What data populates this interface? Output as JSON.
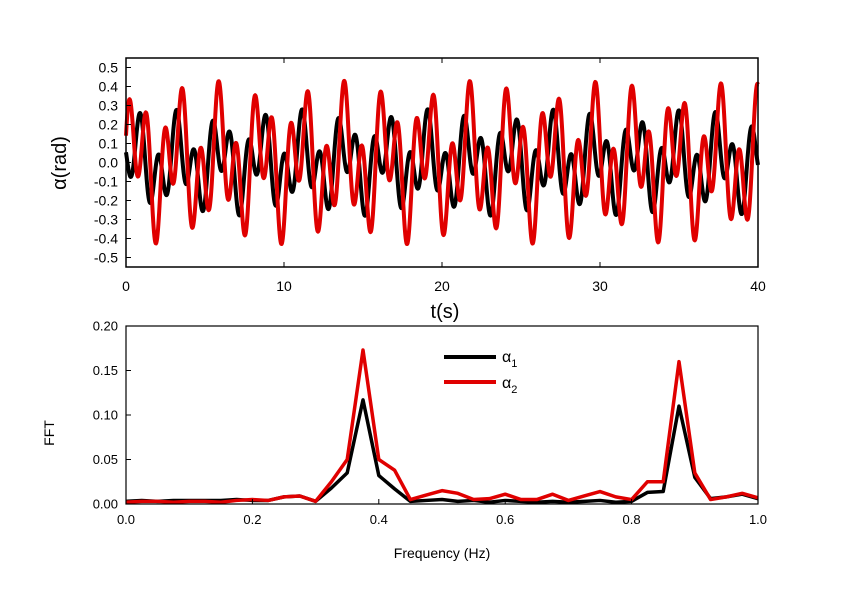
{
  "chart_data": [
    {
      "type": "line",
      "title": "",
      "xlabel": "t(s)",
      "ylabel": "α(rad)",
      "xlim": [
        0,
        40
      ],
      "ylim": [
        -0.55,
        0.55
      ],
      "xticks": [
        "0",
        "10",
        "20",
        "30",
        "40"
      ],
      "xtick_values": [
        0,
        10,
        20,
        30,
        40
      ],
      "yticks": [
        "-0.5",
        "-0.4",
        "-0.3",
        "-0.2",
        "-0.1",
        "0.0",
        "0.1",
        "0.2",
        "0.3",
        "0.4",
        "0.5"
      ],
      "ytick_values": [
        -0.5,
        -0.4,
        -0.3,
        -0.2,
        -0.1,
        0.0,
        0.1,
        0.2,
        0.3,
        0.4,
        0.5
      ],
      "grid": false,
      "legend": "none",
      "series": [
        {
          "color": "#000000",
          "components": [
            {
              "amplitude": 0.12,
              "frequency_hz": 0.38,
              "phase_rad": 0.0
            },
            {
              "amplitude": 0.16,
              "frequency_hz": 0.88,
              "phase_rad": 2.8
            }
          ]
        },
        {
          "color": "#e00000",
          "components": [
            {
              "amplitude": 0.18,
              "frequency_hz": 0.38,
              "phase_rad": 0.0
            },
            {
              "amplitude": 0.25,
              "frequency_hz": 0.88,
              "phase_rad": 0.6
            }
          ]
        }
      ]
    },
    {
      "type": "line",
      "title": "",
      "xlabel": "Frequency (Hz)",
      "ylabel": "FFT",
      "xlim": [
        0,
        1.0
      ],
      "ylim": [
        0,
        0.2
      ],
      "xticks": [
        "0.0",
        "0.2",
        "0.4",
        "0.6",
        "0.8",
        "1.0"
      ],
      "xtick_values": [
        0.0,
        0.2,
        0.4,
        0.6,
        0.8,
        1.0
      ],
      "yticks": [
        "0.00",
        "0.05",
        "0.10",
        "0.15",
        "0.20"
      ],
      "ytick_values": [
        0.0,
        0.05,
        0.1,
        0.15,
        0.2
      ],
      "grid": false,
      "legend": "top-center",
      "x": [
        0.0,
        0.025,
        0.05,
        0.075,
        0.1,
        0.125,
        0.15,
        0.175,
        0.2,
        0.225,
        0.25,
        0.275,
        0.3,
        0.325,
        0.35,
        0.375,
        0.4,
        0.425,
        0.45,
        0.475,
        0.5,
        0.525,
        0.55,
        0.575,
        0.6,
        0.625,
        0.65,
        0.675,
        0.7,
        0.725,
        0.75,
        0.775,
        0.8,
        0.825,
        0.85,
        0.875,
        0.9,
        0.925,
        0.95,
        0.975,
        1.0
      ],
      "series": [
        {
          "name": "α₁",
          "legend_main": "α",
          "legend_sub": "1",
          "color": "#000000",
          "values": [
            0.003,
            0.004,
            0.003,
            0.004,
            0.004,
            0.004,
            0.004,
            0.005,
            0.004,
            0.004,
            0.008,
            0.009,
            0.003,
            0.018,
            0.035,
            0.117,
            0.032,
            0.017,
            0.003,
            0.004,
            0.005,
            0.003,
            0.004,
            0.002,
            0.004,
            0.003,
            0.002,
            0.003,
            0.002,
            0.003,
            0.004,
            0.002,
            0.003,
            0.013,
            0.014,
            0.11,
            0.03,
            0.006,
            0.008,
            0.011,
            0.006
          ]
        },
        {
          "name": "α₂",
          "legend_main": "α",
          "legend_sub": "2",
          "color": "#e00000",
          "values": [
            0.002,
            0.003,
            0.003,
            0.002,
            0.003,
            0.003,
            0.002,
            0.004,
            0.005,
            0.004,
            0.008,
            0.009,
            0.003,
            0.025,
            0.05,
            0.173,
            0.05,
            0.038,
            0.005,
            0.01,
            0.015,
            0.012,
            0.005,
            0.006,
            0.011,
            0.005,
            0.005,
            0.011,
            0.004,
            0.009,
            0.014,
            0.008,
            0.005,
            0.025,
            0.025,
            0.16,
            0.035,
            0.005,
            0.008,
            0.012,
            0.007
          ]
        }
      ]
    }
  ]
}
